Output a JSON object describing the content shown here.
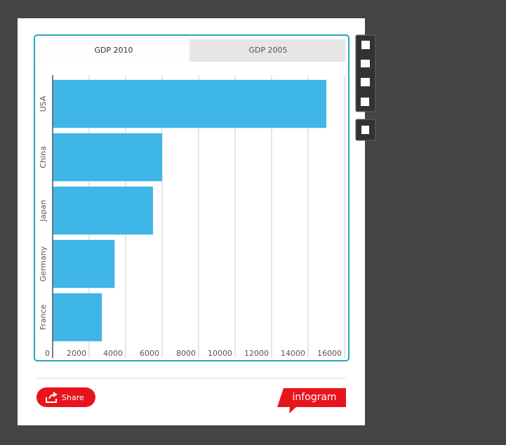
{
  "tabs": [
    "GDP 2010",
    "GDP 2005"
  ],
  "chart_data": {
    "type": "hbar",
    "categories": [
      "USA",
      "China",
      "Japan",
      "Germany",
      "France"
    ],
    "values": [
      15000,
      6000,
      5500,
      3400,
      2700
    ],
    "color": "#3fb6e8",
    "xlim": [
      0,
      16000
    ],
    "xticks": [
      0,
      2000,
      4000,
      6000,
      8000,
      10000,
      12000,
      14000,
      16000
    ],
    "grid": true
  },
  "share": "Share",
  "brand": "infogram"
}
